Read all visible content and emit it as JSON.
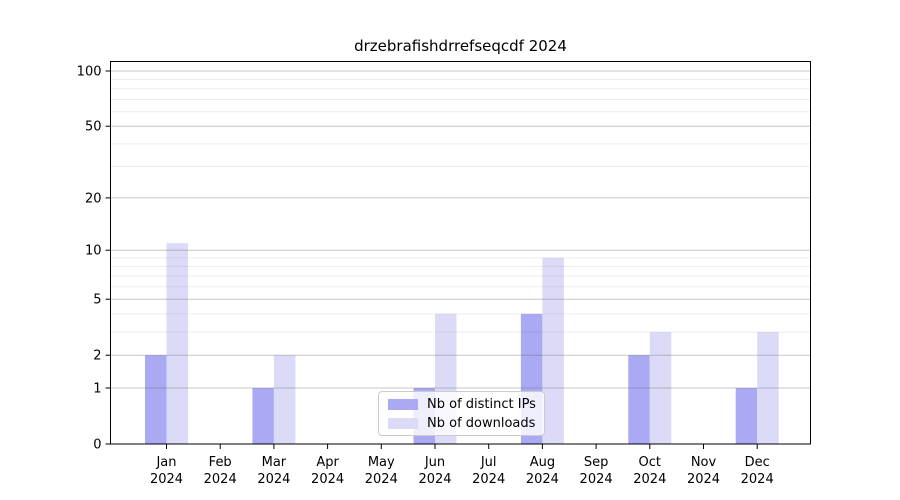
{
  "chart_data": {
    "type": "bar",
    "title": "drzebrafishdrrefseqcdf 2024",
    "categories": [
      "Jan",
      "Feb",
      "Mar",
      "Apr",
      "May",
      "Jun",
      "Jul",
      "Aug",
      "Sep",
      "Oct",
      "Nov",
      "Dec"
    ],
    "xtick_year": "2024",
    "series": [
      {
        "key": "distinct-ips",
        "name": "Nb of distinct IPs",
        "color": "#a9a9f4",
        "values": [
          2,
          0,
          1,
          0,
          0,
          1,
          0,
          4,
          0,
          2,
          0,
          1
        ]
      },
      {
        "key": "downloads",
        "name": "Nb of downloads",
        "color": "#dbdbf8",
        "values": [
          11,
          0,
          2,
          0,
          0,
          4,
          0,
          9,
          0,
          3,
          0,
          3
        ]
      }
    ],
    "yscale": "log1p",
    "ylim": [
      0,
      100
    ],
    "yticks": [
      0,
      1,
      2,
      5,
      10,
      20,
      50,
      100
    ],
    "yticks_minor": [
      3,
      4,
      6,
      7,
      8,
      9,
      30,
      40,
      60,
      70,
      80,
      90
    ],
    "grid": true,
    "grid_over_bars": true,
    "legend_position": "lower-center"
  }
}
